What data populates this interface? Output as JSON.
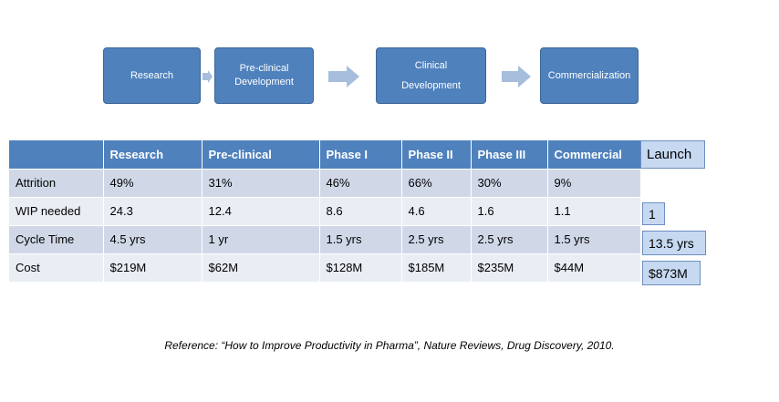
{
  "flow": {
    "stages": [
      {
        "lines": [
          "Research"
        ]
      },
      {
        "lines": [
          "Pre-clinical",
          "Development"
        ]
      },
      {
        "lines": [
          "Clinical",
          "",
          "Development"
        ]
      },
      {
        "lines": [
          "Commercialization"
        ]
      }
    ]
  },
  "table": {
    "headers": [
      "",
      "Research",
      "Pre-clinical",
      "Phase I",
      "Phase II",
      "Phase III",
      "Commercial"
    ],
    "rows": [
      {
        "label": "Attrition",
        "cells": [
          "49%",
          "31%",
          "46%",
          "66%",
          "30%",
          "9%"
        ]
      },
      {
        "label": "WIP needed",
        "cells": [
          "24.3",
          "12.4",
          "8.6",
          "4.6",
          "1.6",
          "1.1"
        ]
      },
      {
        "label": "Cycle Time",
        "cells": [
          "4.5 yrs",
          "1 yr",
          "1.5 yrs",
          "2.5 yrs",
          "2.5 yrs",
          "1.5 yrs"
        ]
      },
      {
        "label": "Cost",
        "cells": [
          "$219M",
          "$62M",
          "$128M",
          "$185M",
          "$235M",
          "$44M"
        ]
      }
    ]
  },
  "launch": {
    "header": "Launch",
    "wip": "1",
    "cycle_time": "13.5 yrs",
    "cost": "$873M"
  },
  "reference": "Reference: “How to Improve Productivity in Pharma”, Nature Reviews, Drug Discovery, 2010.",
  "colors": {
    "box_fill": "#4f81bd",
    "arrow_fill": "#a6bedc",
    "row_dark": "#d0d8e8",
    "row_light": "#e9edf4",
    "side_box": "#c6d9f1"
  }
}
